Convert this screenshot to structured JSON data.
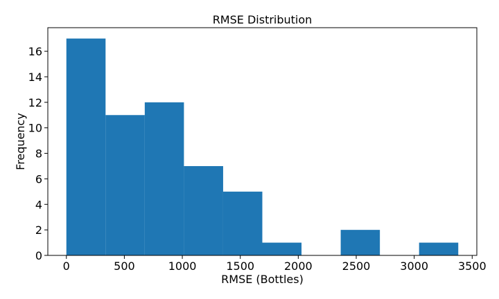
{
  "chart_data": {
    "type": "bar",
    "subtype": "histogram",
    "title": "RMSE Distribution",
    "xlabel": "RMSE (Bottles)",
    "ylabel": "Frequency",
    "bar_color": "#1f77b4",
    "bin_edges": [
      0,
      338,
      676,
      1014,
      1352,
      1690,
      2028,
      2366,
      2704,
      3042,
      3380
    ],
    "values": [
      17,
      11,
      12,
      7,
      5,
      1,
      0,
      2,
      0,
      1
    ],
    "xlim": [
      -160,
      3540
    ],
    "ylim": [
      0,
      17.85
    ],
    "xticks": [
      0,
      500,
      1000,
      1500,
      2000,
      2500,
      3000,
      3500
    ],
    "yticks": [
      0,
      2,
      4,
      6,
      8,
      10,
      12,
      14,
      16
    ],
    "grid": false,
    "legend": "none"
  }
}
